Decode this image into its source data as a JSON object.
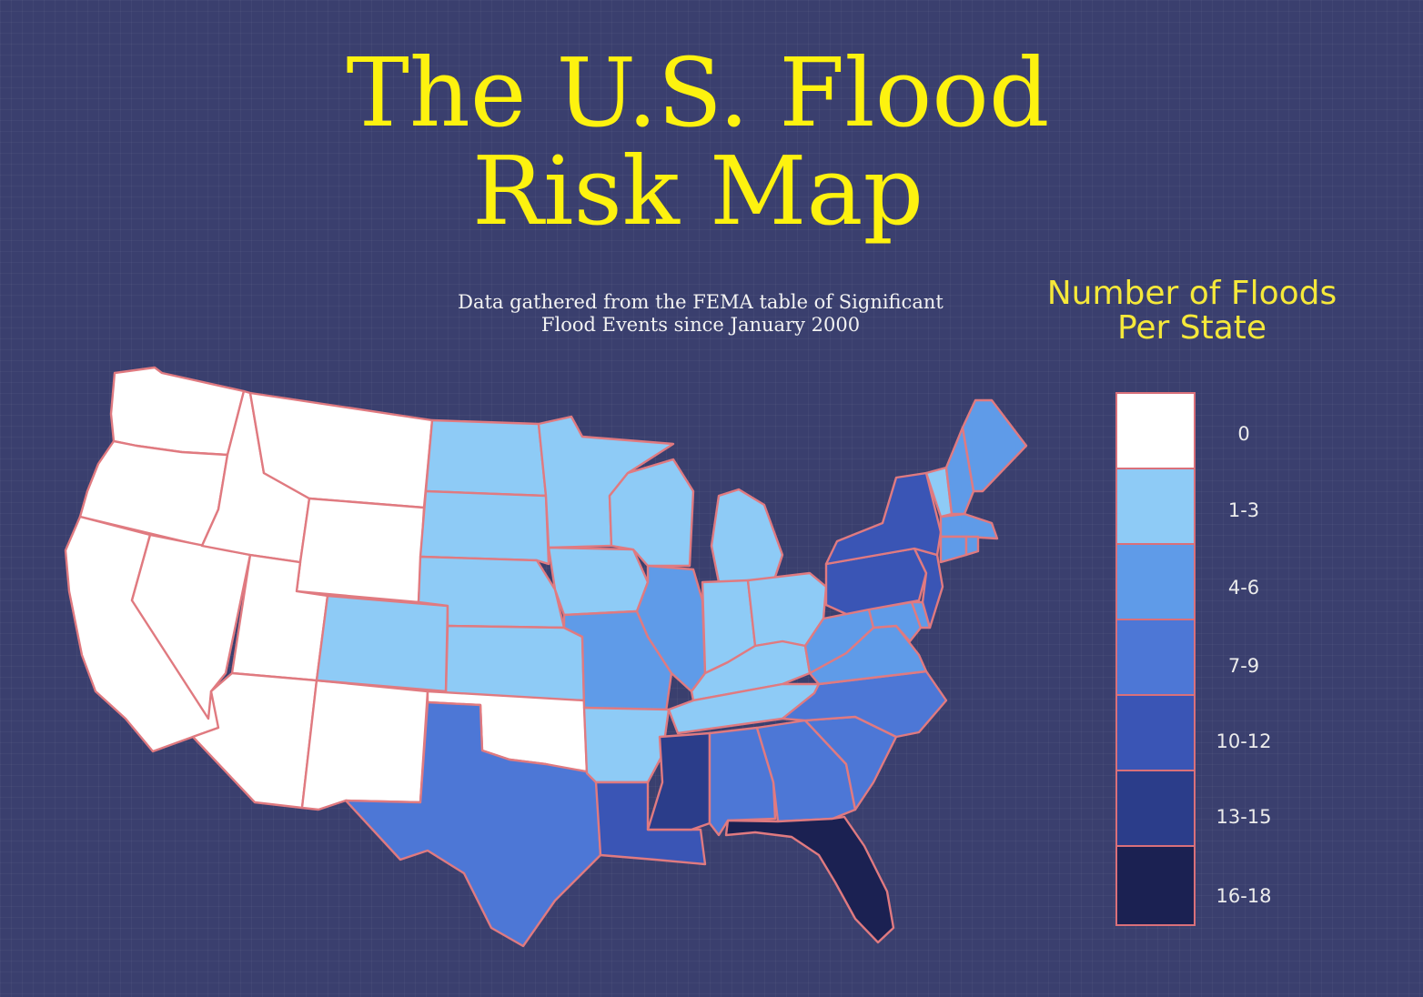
{
  "title": {
    "line1": "The U.S. Flood",
    "line2": "Risk Map"
  },
  "subtitle": {
    "line1": "Data gathered from the FEMA table of Significant",
    "line2": "Flood Events since January 2000"
  },
  "legend": {
    "title_line1": "Number of Floods",
    "title_line2": "Per State",
    "bins": [
      {
        "label": "0",
        "color": "#ffffff"
      },
      {
        "label": "1-3",
        "color": "#8ecbf6"
      },
      {
        "label": "4-6",
        "color": "#5f9be8"
      },
      {
        "label": "7-9",
        "color": "#4d77d6"
      },
      {
        "label": "10-12",
        "color": "#3a55b5"
      },
      {
        "label": "13-15",
        "color": "#2b3d8a"
      },
      {
        "label": "16-18",
        "color": "#1b2152"
      }
    ]
  },
  "colors": {
    "background": "#3a3f6e",
    "title": "#fdf20f",
    "border": "#e07a80"
  },
  "state_bins": {
    "WA": 0,
    "OR": 0,
    "CA": 0,
    "NV": 0,
    "ID": 0,
    "MT": 0,
    "WY": 0,
    "UT": 0,
    "AZ": 0,
    "NM": 0,
    "OK": 0,
    "CO": 1,
    "ND": 1,
    "SD": 1,
    "NE": 1,
    "KS": 1,
    "MN": 1,
    "IA": 1,
    "WI": 1,
    "MI": 1,
    "IN": 1,
    "OH": 1,
    "KY": 1,
    "TN": 1,
    "AR": 1,
    "VT": 1,
    "MO": 2,
    "IL": 2,
    "WV": 2,
    "VA": 2,
    "ME": 2,
    "NH": 2,
    "MA": 2,
    "CT": 2,
    "RI": 2,
    "MD": 2,
    "DE": 2,
    "TX": 3,
    "NC": 3,
    "SC": 3,
    "GA": 3,
    "AL": 3,
    "LA": 4,
    "NY": 4,
    "PA": 4,
    "NJ": 4,
    "MS": 5,
    "FL": 6
  }
}
